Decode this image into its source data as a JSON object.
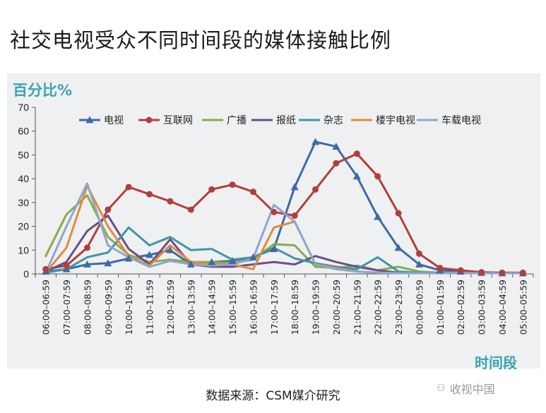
{
  "page_title": "社交电视受众不同时间段的媒体接触比例",
  "source_note": "数据来源：CSM媒介研究",
  "watermark_text": "收视中国",
  "chart_data": {
    "type": "line",
    "ylabel": "百分比%",
    "xlabel": "时间段",
    "ylim": [
      0,
      70
    ],
    "yticks": [
      0,
      10,
      20,
      30,
      40,
      50,
      60,
      70
    ],
    "legend_position": "top",
    "grid": false,
    "categories": [
      "06:00–06:59",
      "07:00–07:59",
      "08:00–08:59",
      "09:00–09:59",
      "10:00–10:59",
      "11:00–11:59",
      "12:00–12:59",
      "13:00–13:59",
      "14:00–14:59",
      "15:00–15:59",
      "16:00–16:59",
      "17:00–17:59",
      "18:00–18:59",
      "19:00–19:59",
      "20:00–20:59",
      "21:00–21:59",
      "22:00–22:59",
      "23:00–23:59",
      "00:00–00:59",
      "01:00–01:59",
      "02:00–02:59",
      "03:00–03:59",
      "04:00–04:59",
      "05:00–05:59"
    ],
    "series": [
      {
        "name": "电视",
        "color": "#3c6ba6",
        "marker": "triangle",
        "values": [
          1,
          2,
          4,
          4.5,
          6.5,
          8,
          10,
          4,
          5,
          5.5,
          7,
          10.5,
          36.5,
          55.5,
          53.5,
          41,
          24,
          11,
          4,
          1.5,
          1,
          0.5,
          0.3,
          0.3
        ]
      },
      {
        "name": "互联网",
        "color": "#b13e3c",
        "marker": "circle",
        "values": [
          2,
          3.5,
          11,
          27,
          36.5,
          33.5,
          30.5,
          27,
          35.5,
          37.5,
          34.5,
          26,
          24.5,
          35.5,
          46.5,
          50.5,
          41,
          25.5,
          8.5,
          2.5,
          1.5,
          0.7,
          0.5,
          0.5
        ]
      },
      {
        "name": "广播",
        "color": "#8aab4a",
        "marker": "none",
        "values": [
          7.5,
          25,
          33,
          15.5,
          8,
          5,
          6,
          5,
          5,
          4.5,
          6,
          12.5,
          12,
          3,
          2.5,
          3.5,
          1.5,
          3,
          1,
          0.5,
          0.5,
          0.3,
          0.3,
          0.3
        ]
      },
      {
        "name": "报纸",
        "color": "#6a4e8a",
        "marker": "none",
        "values": [
          1,
          5,
          18,
          24.5,
          10.5,
          4,
          14.5,
          4,
          3,
          3,
          4,
          5,
          4,
          7.5,
          5,
          3,
          1.5,
          0.5,
          0.5,
          0.3,
          0.3,
          0.3,
          0.3,
          0.3
        ]
      },
      {
        "name": "杂志",
        "color": "#3f96a6",
        "marker": "none",
        "values": [
          0.5,
          2,
          7,
          9,
          19.5,
          12,
          15.5,
          10,
          10.5,
          6,
          7,
          11,
          6.5,
          4.5,
          3,
          2,
          7,
          1,
          0.5,
          0.3,
          0.3,
          0.3,
          0.3,
          0.3
        ]
      },
      {
        "name": "楼宇电视",
        "color": "#e28a3c",
        "marker": "none",
        "values": [
          0.5,
          11,
          37,
          20,
          7.5,
          3.5,
          12,
          5,
          4,
          4,
          2,
          19.5,
          22,
          4,
          2.5,
          1,
          0.5,
          0.3,
          0.3,
          0.3,
          0.3,
          0.3,
          0.3,
          0.3
        ]
      },
      {
        "name": "车载电视",
        "color": "#8fa6cc",
        "marker": "none",
        "values": [
          0.5,
          20,
          38,
          12,
          7,
          3,
          5.5,
          4,
          3.5,
          4,
          6.5,
          29,
          22,
          4,
          2,
          1,
          0.5,
          0.3,
          0.3,
          0.3,
          0.3,
          0.3,
          0.3,
          0.3
        ]
      }
    ]
  }
}
